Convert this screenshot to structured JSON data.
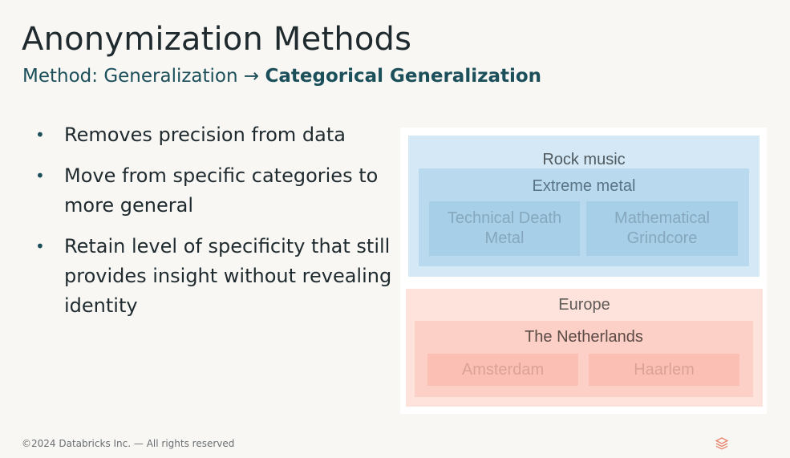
{
  "slide": {
    "title": "Anonymization Methods",
    "subtitle_prefix": "Method: Generalization → ",
    "subtitle_emphasis": "Categorical Generalization",
    "bullets": [
      "Removes precision from data",
      "Move from specific categories to more general",
      "Retain level of specificity that still provides insight without revealing identity"
    ]
  },
  "diagram": {
    "music": {
      "level0": "Rock music",
      "level1": "Extreme metal",
      "leaves": [
        "Technical Death Metal",
        "Mathematical Grindcore"
      ]
    },
    "location": {
      "level0": "Europe",
      "level1": "The Netherlands",
      "leaves": [
        "Amsterdam",
        "Haarlem"
      ]
    }
  },
  "footer": {
    "copyright": "©2024 Databricks Inc. — All rights reserved",
    "logo_icon": "databricks-logo-icon",
    "logo_color": "#e8836b"
  }
}
